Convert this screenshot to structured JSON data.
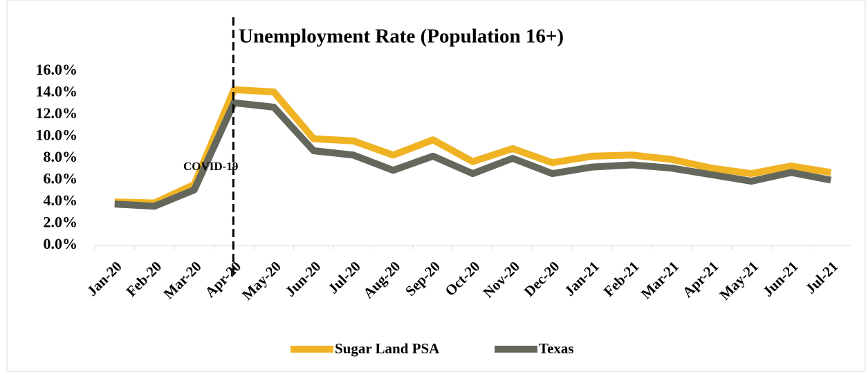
{
  "chart_data": {
    "type": "line",
    "title": "Unemployment Rate (Population 16+)",
    "categories": [
      "Jan-20",
      "Feb-20",
      "Mar-20",
      "Apr-20",
      "May-20",
      "Jun-20",
      "Jul-20",
      "Aug-20",
      "Sep-20",
      "Oct-20",
      "Nov-20",
      "Dec-20",
      "Jan-21",
      "Feb-21",
      "Mar-21",
      "Apr-21",
      "May-21",
      "Jun-21",
      "Jul-21"
    ],
    "series": [
      {
        "name": "Sugar Land PSA",
        "color": "#f0b323",
        "values": [
          4.0,
          3.9,
          5.6,
          14.3,
          14.1,
          9.8,
          9.6,
          8.3,
          9.7,
          7.7,
          8.9,
          7.6,
          8.2,
          8.3,
          7.9,
          7.1,
          6.6,
          7.3,
          6.7
        ]
      },
      {
        "name": "Texas",
        "color": "#64675c",
        "values": [
          3.8,
          3.6,
          5.1,
          13.1,
          12.7,
          8.7,
          8.3,
          6.9,
          8.2,
          6.6,
          8.0,
          6.6,
          7.2,
          7.4,
          7.1,
          6.5,
          5.9,
          6.7,
          6.0
        ]
      }
    ],
    "ylim": [
      0,
      16
    ],
    "yticks": [
      {
        "value": 0,
        "label": "0.0%"
      },
      {
        "value": 2,
        "label": "2.0%"
      },
      {
        "value": 4,
        "label": "4.0%"
      },
      {
        "value": 6,
        "label": "6.0%"
      },
      {
        "value": 8,
        "label": "8.0%"
      },
      {
        "value": 10,
        "label": "10.0%"
      },
      {
        "value": 12,
        "label": "12.0%"
      },
      {
        "value": 14,
        "label": "14.0%"
      },
      {
        "value": 16,
        "label": "16.0%"
      }
    ],
    "annotations": [
      {
        "text": "COVID-19",
        "x": "Apr-20"
      }
    ],
    "legend": "bottom"
  }
}
